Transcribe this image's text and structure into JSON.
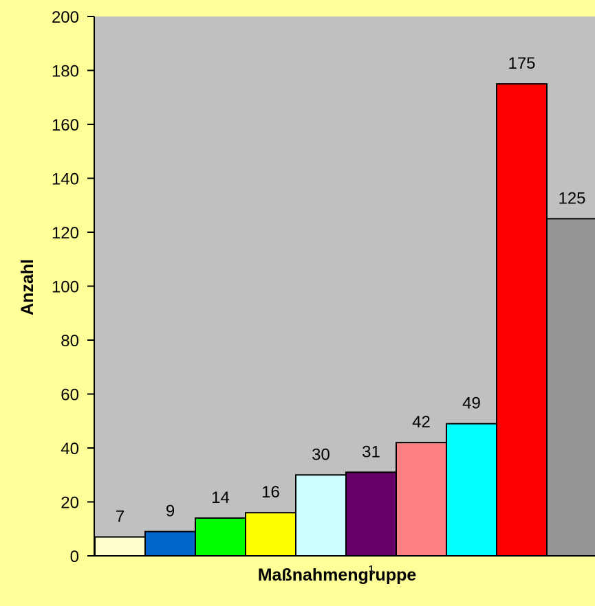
{
  "chart_data": {
    "type": "bar",
    "title": "",
    "xlabel": "Maßnahmengruppe",
    "x_marker": "1",
    "ylabel": "Anzahl",
    "ylim": [
      0,
      200
    ],
    "yticks": [
      0,
      20,
      40,
      60,
      80,
      100,
      120,
      140,
      160,
      180,
      200
    ],
    "grid": false,
    "legend": "none",
    "values": [
      7,
      9,
      14,
      16,
      30,
      31,
      42,
      49,
      175,
      125
    ],
    "data_labels": [
      "7",
      "9",
      "14",
      "16",
      "30",
      "31",
      "42",
      "49",
      "175",
      "125"
    ],
    "colors": [
      "#FFFFCC",
      "#0066CC",
      "#00FF00",
      "#FFFF00",
      "#CCFFFF",
      "#660066",
      "#FF8080",
      "#00FFFF",
      "#FF0000",
      "#969696"
    ],
    "plot_background": "#C0C0C0",
    "page_background": "#FFFF99"
  }
}
